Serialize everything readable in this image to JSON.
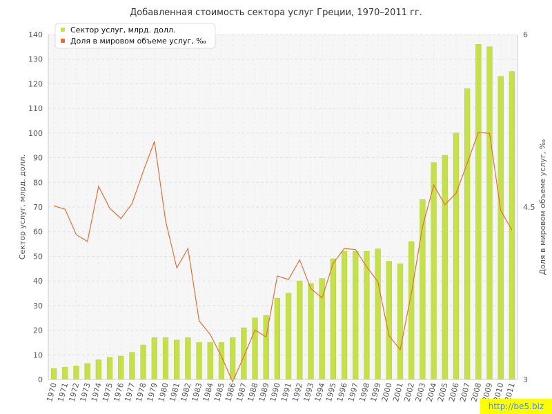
{
  "watermark": "http://be5.biz",
  "chart_data": {
    "type": "bar",
    "title": "Добавленная стоимость сектора услуг Греции, 1970–2011 гг.",
    "ylabel": "Сектор услуг, млрд. долл.",
    "y2label": "Доля в мировом объеме услуг, ‰",
    "ylim": [
      0,
      140
    ],
    "yticks": [
      0,
      10,
      20,
      30,
      40,
      50,
      60,
      70,
      80,
      90,
      100,
      110,
      120,
      130,
      140
    ],
    "y2lim": [
      3,
      6
    ],
    "y2ticks": [
      "3",
      "4.5",
      "6"
    ],
    "grid": true,
    "legend_position": "top-left",
    "categories": [
      "1970",
      "1971",
      "1972",
      "1973",
      "1974",
      "1975",
      "1976",
      "1977",
      "1978",
      "1979",
      "1980",
      "1981",
      "1982",
      "1983",
      "1984",
      "1985",
      "1986",
      "1987",
      "1988",
      "1989",
      "1990",
      "1991",
      "1992",
      "1993",
      "1994",
      "1995",
      "1996",
      "1997",
      "1998",
      "1999",
      "2000",
      "2001",
      "2002",
      "2003",
      "2004",
      "2005",
      "2006",
      "2007",
      "2008",
      "2009",
      "2010",
      "2011"
    ],
    "series": [
      {
        "name": "Сектор услуг, млрд. долл.",
        "type": "bar",
        "axis": "left",
        "color": "#c5e04a",
        "values": [
          4.5,
          5,
          5.5,
          6.5,
          8,
          9,
          9.5,
          11,
          14,
          17,
          17,
          16,
          17,
          15,
          15,
          15,
          17,
          21,
          25,
          26,
          33,
          35,
          40,
          39,
          41,
          49,
          52,
          52,
          52,
          53,
          48,
          47,
          56,
          73,
          88,
          91,
          100,
          118,
          136,
          135,
          123,
          125
        ]
      },
      {
        "name": "Доля в мировом объеме услуг, ‰",
        "type": "line",
        "axis": "right",
        "color": "#e0703a",
        "values": [
          4.51,
          4.48,
          4.26,
          4.2,
          4.68,
          4.49,
          4.4,
          4.53,
          4.81,
          5.07,
          4.38,
          3.97,
          4.14,
          3.51,
          3.39,
          3.2,
          2.98,
          3.2,
          3.43,
          3.37,
          3.9,
          3.87,
          4.04,
          3.79,
          3.71,
          4.01,
          4.14,
          4.13,
          3.98,
          3.85,
          3.38,
          3.26,
          3.75,
          4.33,
          4.69,
          4.52,
          4.62,
          4.88,
          5.15,
          5.14,
          4.47,
          4.3
        ]
      }
    ]
  }
}
